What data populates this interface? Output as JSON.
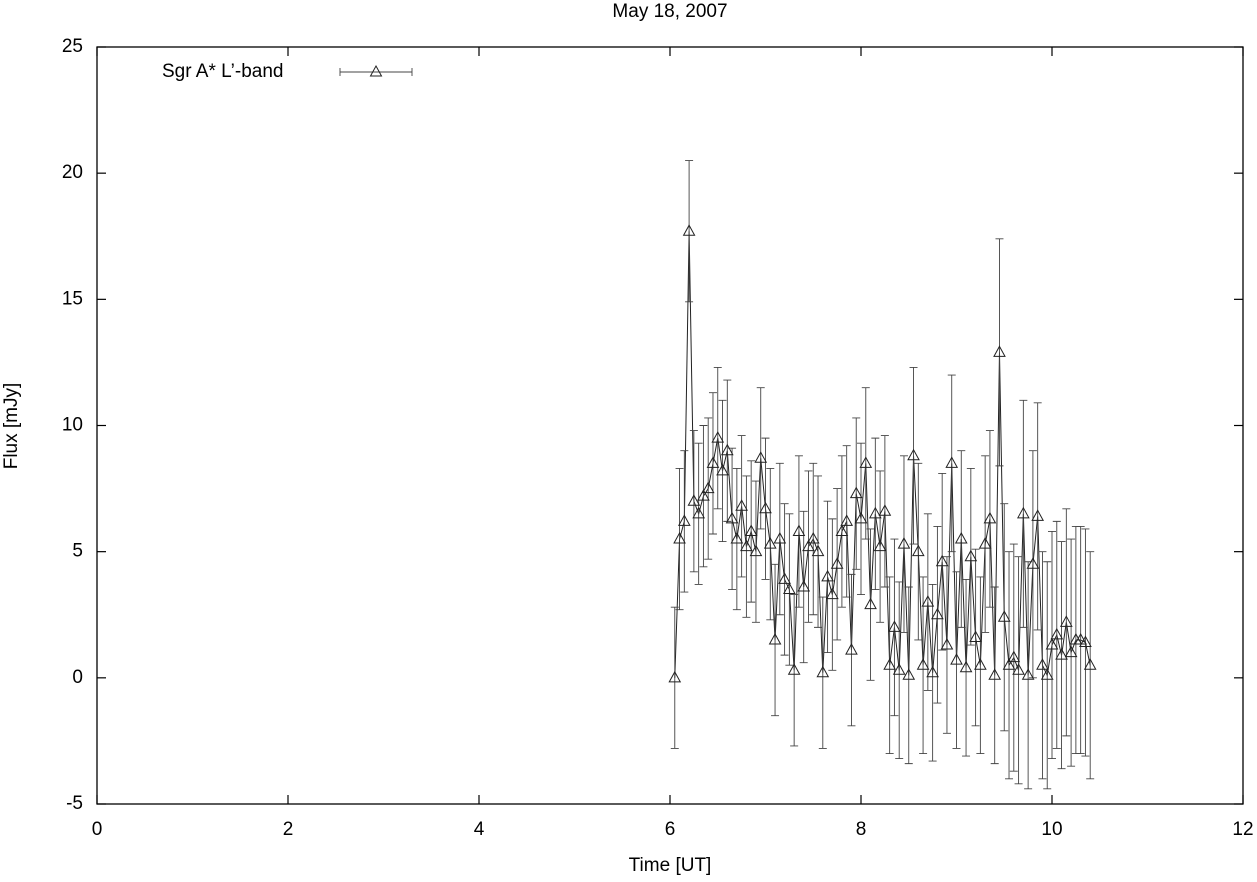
{
  "chart_data": {
    "type": "errorbar-line",
    "title": "May 18, 2007",
    "xlabel": "Time [UT]",
    "ylabel": "Flux [mJy]",
    "xlim": [
      0,
      12
    ],
    "xticks": [
      0,
      2,
      4,
      6,
      8,
      10,
      12
    ],
    "ylim": [
      -5,
      25
    ],
    "yticks": [
      -5,
      0,
      5,
      10,
      15,
      20,
      25
    ],
    "legend": "top-left",
    "series": [
      {
        "name": "Sgr A* L’-band",
        "color": "#222222",
        "x": [
          6.05,
          6.1,
          6.15,
          6.2,
          6.25,
          6.3,
          6.35,
          6.4,
          6.45,
          6.5,
          6.55,
          6.6,
          6.65,
          6.7,
          6.75,
          6.8,
          6.85,
          6.9,
          6.95,
          7,
          7.05,
          7.1,
          7.15,
          7.2,
          7.25,
          7.3,
          7.35,
          7.4,
          7.45,
          7.5,
          7.55,
          7.6,
          7.65,
          7.7,
          7.75,
          7.8,
          7.85,
          7.9,
          7.95,
          8,
          8.05,
          8.1,
          8.15,
          8.2,
          8.25,
          8.3,
          8.35,
          8.4,
          8.45,
          8.5,
          8.55,
          8.6,
          8.65,
          8.7,
          8.75,
          8.8,
          8.85,
          8.9,
          8.95,
          9,
          9.05,
          9.1,
          9.15,
          9.2,
          9.25,
          9.3,
          9.35,
          9.4,
          9.45,
          9.5,
          9.55,
          9.6,
          9.65,
          9.7,
          9.75,
          9.8,
          9.85,
          9.9,
          9.95,
          10,
          10.05,
          10.1,
          10.15,
          10.2,
          10.25,
          10.3,
          10.35,
          10.4
        ],
        "values": [
          0.0,
          5.5,
          6.2,
          17.7,
          7.0,
          6.5,
          7.2,
          7.5,
          8.5,
          9.5,
          8.2,
          9.0,
          6.3,
          5.5,
          6.8,
          5.2,
          5.8,
          5.0,
          8.7,
          6.7,
          5.3,
          1.5,
          5.5,
          3.9,
          3.5,
          0.3,
          5.8,
          3.6,
          5.2,
          5.5,
          5.0,
          0.2,
          4.0,
          3.3,
          4.5,
          5.8,
          6.2,
          1.1,
          7.3,
          6.3,
          8.5,
          2.9,
          6.5,
          5.2,
          6.6,
          0.5,
          2.0,
          0.3,
          5.3,
          0.1,
          8.8,
          5.0,
          0.5,
          3.0,
          0.2,
          2.5,
          4.6,
          1.3,
          8.5,
          0.7,
          5.5,
          0.4,
          4.8,
          1.6,
          0.5,
          5.3,
          6.3,
          0.1,
          12.9,
          2.4,
          0.5,
          0.8,
          0.3,
          6.5,
          0.1,
          4.5,
          6.4,
          0.5,
          0.1,
          1.3,
          1.7,
          0.9,
          2.2,
          1.0,
          1.5,
          1.5,
          1.4,
          0.5
        ],
        "errors": [
          2.8,
          2.8,
          2.8,
          2.8,
          2.8,
          2.8,
          2.8,
          2.8,
          2.8,
          2.8,
          2.8,
          2.8,
          2.8,
          2.8,
          2.8,
          2.8,
          2.8,
          2.8,
          2.8,
          2.8,
          3.0,
          3.0,
          3.0,
          3.0,
          3.0,
          3.0,
          3.0,
          3.0,
          3.0,
          3.0,
          3.0,
          3.0,
          3.0,
          3.0,
          3.0,
          3.0,
          3.0,
          3.0,
          3.0,
          3.0,
          3.0,
          3.0,
          3.0,
          3.0,
          3.0,
          3.5,
          3.5,
          3.5,
          3.5,
          3.5,
          3.5,
          3.5,
          3.5,
          3.5,
          3.5,
          3.5,
          3.5,
          3.5,
          3.5,
          3.5,
          3.5,
          3.5,
          3.5,
          3.5,
          3.5,
          3.5,
          3.5,
          3.5,
          4.5,
          4.5,
          4.5,
          4.5,
          4.5,
          4.5,
          4.5,
          4.5,
          4.5,
          4.5,
          4.5,
          4.5,
          4.5,
          4.5,
          4.5,
          4.5,
          4.5,
          4.5,
          4.5,
          4.5
        ]
      }
    ]
  }
}
